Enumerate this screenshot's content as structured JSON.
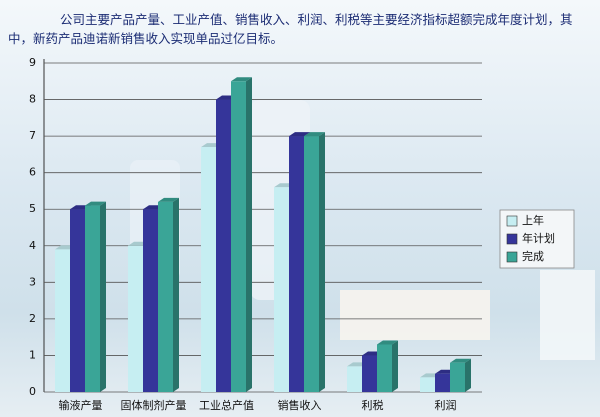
{
  "chart_data": {
    "type": "bar",
    "title": "公司主要产品产量、工业产值、销售收入、利润、利税等主要经济指标超额完成年度计划，其中，新药产品迪诺新销售收入实现单品过亿目标。",
    "categories": [
      "输液产量",
      "固体制剂产量",
      "工业总产值",
      "销售收入",
      "利税",
      "利润"
    ],
    "series": [
      {
        "name": "上年",
        "color": "#c6eef2",
        "values": [
          3.9,
          4.0,
          6.7,
          5.6,
          0.7,
          0.4
        ]
      },
      {
        "name": "年计划",
        "color": "#35359a",
        "values": [
          5.0,
          5.0,
          8.0,
          7.0,
          1.0,
          0.5
        ]
      },
      {
        "name": "完成",
        "color": "#3aa597",
        "values": [
          5.1,
          5.2,
          8.5,
          7.0,
          1.3,
          0.8
        ]
      }
    ],
    "ylim": [
      0,
      9
    ],
    "yticks": [
      0,
      1,
      2,
      3,
      4,
      5,
      6,
      7,
      8,
      9
    ],
    "grid": true
  }
}
